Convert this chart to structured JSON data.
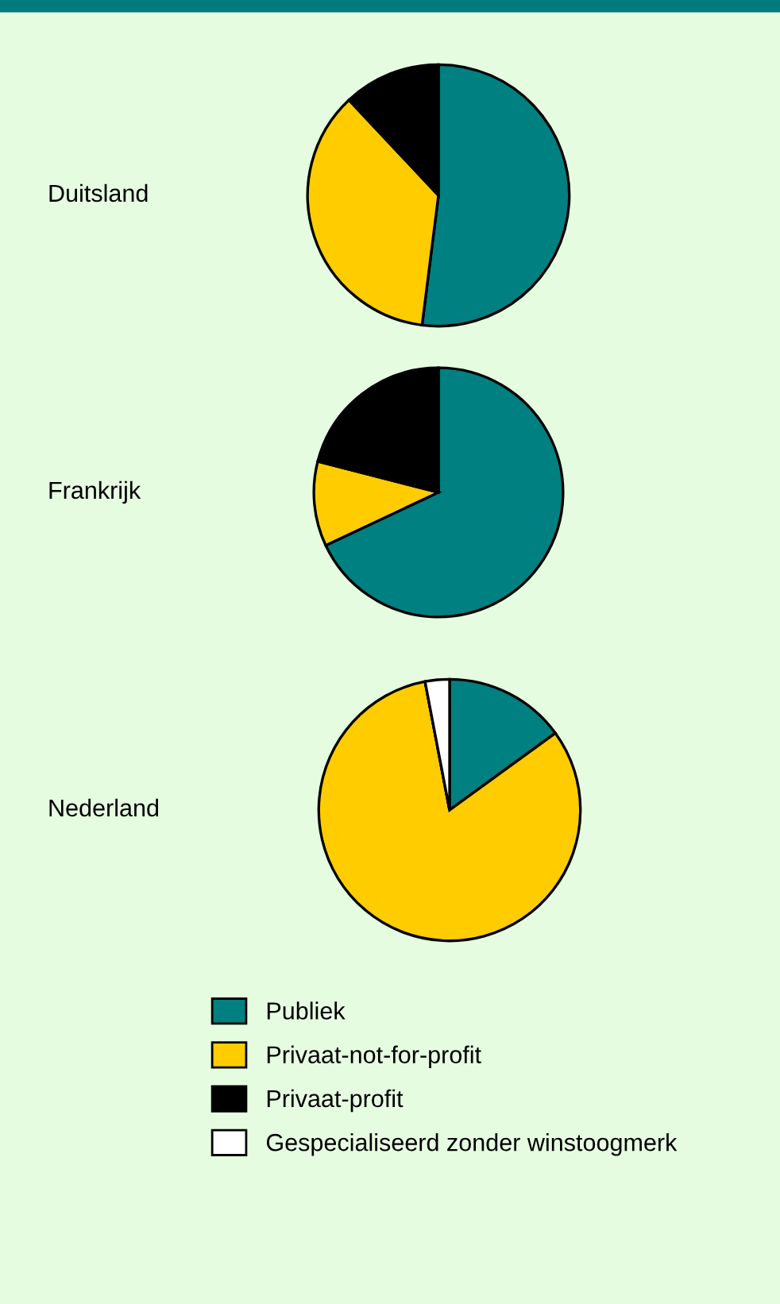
{
  "chart_data": [
    {
      "type": "pie",
      "title": "Duitsland",
      "categories": [
        "Publiek",
        "Privaat-not-for-profit",
        "Privaat-profit",
        "Gespecialiseerd zonder winstoogmerk"
      ],
      "values": [
        52,
        36,
        12,
        0
      ],
      "colors": [
        "#008080",
        "#ffcc00",
        "#000000",
        "#ffffff"
      ],
      "legend": "bottom"
    },
    {
      "type": "pie",
      "title": "Frankrijk",
      "categories": [
        null,
        null,
        null,
        null
      ],
      "values": [
        68,
        11,
        21,
        0
      ],
      "colors": [
        "#008080",
        "#ffcc00",
        "#000000",
        "#ffffff"
      ]
    },
    {
      "type": "pie",
      "title": "Nederland",
      "categories": [
        null,
        null,
        null,
        null
      ],
      "values": [
        15,
        82,
        0,
        3
      ],
      "colors": [
        "#008080",
        "#ffcc00",
        "#000000",
        "#ffffff"
      ]
    }
  ]
}
